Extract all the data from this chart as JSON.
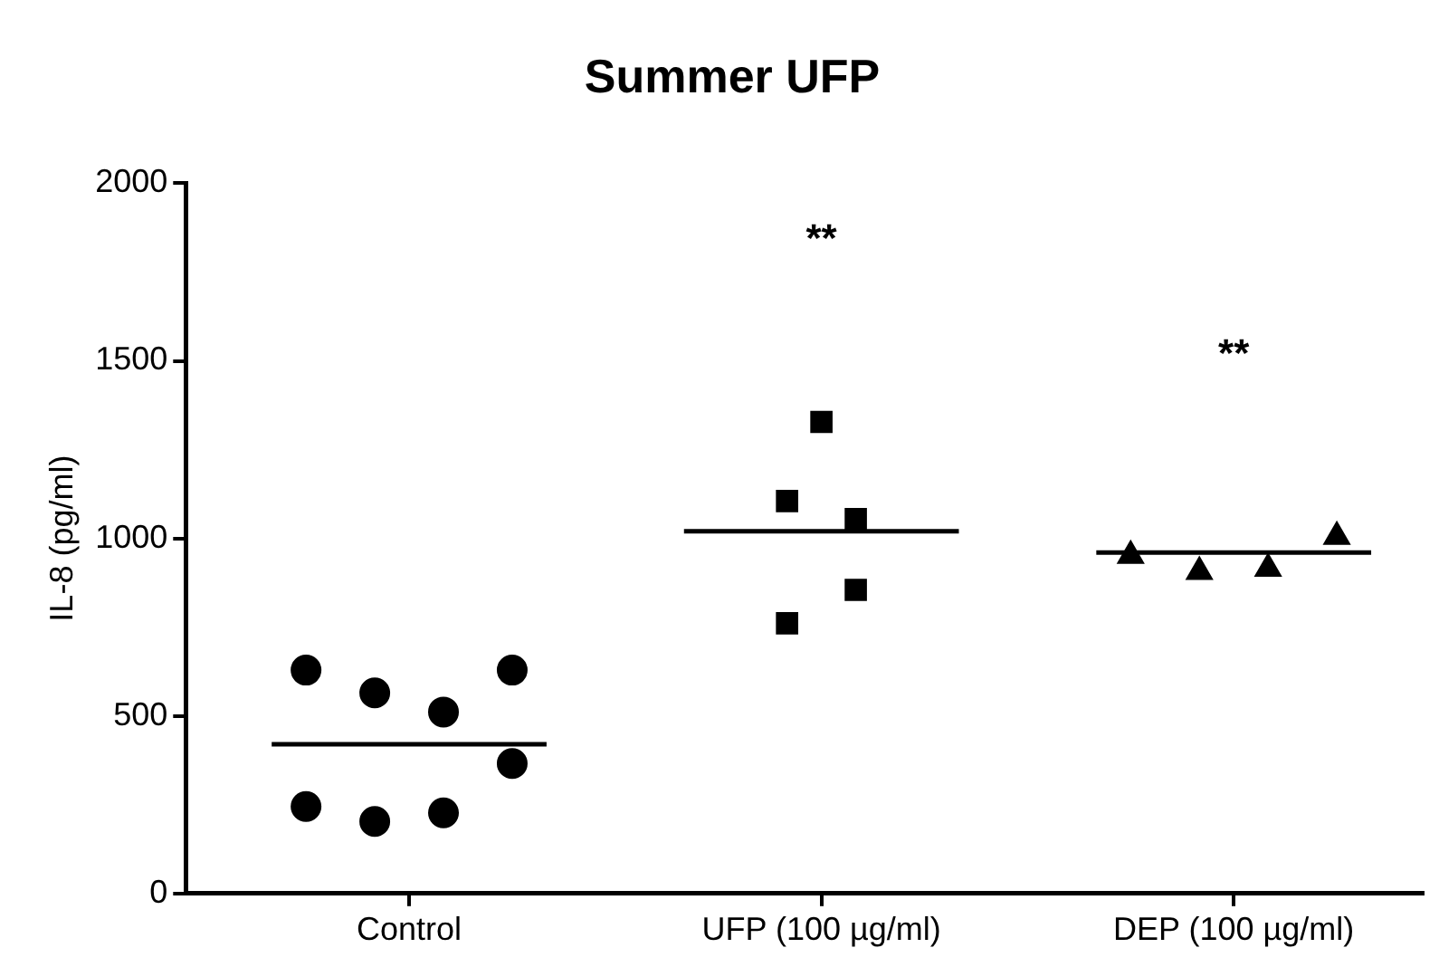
{
  "chart_data": {
    "type": "scatter",
    "title": "Summer UFP",
    "ylabel": "IL-8 (pg/ml)",
    "categories": [
      null,
      null,
      null,
      null,
      null,
      null,
      "Control",
      null,
      null,
      null,
      null,
      null,
      null,
      null,
      null,
      null,
      null,
      null,
      "UFP (100 µg/ml)",
      null,
      null,
      null,
      null,
      null,
      null,
      null,
      null,
      null,
      null,
      null,
      "DEP (100 µg/ml)",
      null,
      null,
      null,
      null,
      null
    ],
    "ylim": [
      0,
      2000
    ],
    "yticks": [
      0,
      500,
      1000,
      1500,
      2000
    ],
    "grid": false,
    "legend": false,
    "series": [
      {
        "type": "scatter",
        "marker": "circle",
        "color": "#000000",
        "values": [
          null,
          null,
          null,
          629,
          null,
          565,
          null,
          511,
          null,
          629,
          null,
          null,
          null,
          null,
          null,
          null,
          null,
          null,
          null,
          null,
          null,
          null,
          null,
          null,
          null,
          null,
          null,
          null,
          null,
          null,
          null,
          null,
          null,
          null,
          null,
          null
        ]
      },
      {
        "type": "scatter",
        "marker": "circle",
        "color": "#000000",
        "values": [
          null,
          null,
          null,
          245,
          null,
          203,
          null,
          227,
          null,
          366,
          null,
          null,
          null,
          null,
          null,
          null,
          null,
          null,
          null,
          null,
          null,
          null,
          null,
          null,
          null,
          null,
          null,
          null,
          null,
          null,
          null,
          null,
          null,
          null,
          null,
          null
        ]
      },
      {
        "type": "scatter",
        "marker": "square",
        "color": "#000000",
        "values": [
          null,
          null,
          null,
          null,
          null,
          null,
          null,
          null,
          null,
          null,
          null,
          null,
          null,
          null,
          null,
          null,
          null,
          1105,
          1328,
          1054,
          null,
          null,
          null,
          null,
          null,
          null,
          null,
          null,
          null,
          null,
          null,
          null,
          null,
          null,
          null,
          null
        ]
      },
      {
        "type": "scatter",
        "marker": "square",
        "color": "#000000",
        "values": [
          null,
          null,
          null,
          null,
          null,
          null,
          null,
          null,
          null,
          null,
          null,
          null,
          null,
          null,
          null,
          null,
          null,
          761,
          null,
          855,
          null,
          null,
          null,
          null,
          null,
          null,
          null,
          null,
          null,
          null,
          null,
          null,
          null,
          null,
          null,
          null
        ]
      },
      {
        "type": "scatter",
        "marker": "triangle",
        "color": "#000000",
        "values": [
          null,
          null,
          null,
          null,
          null,
          null,
          null,
          null,
          null,
          null,
          null,
          null,
          null,
          null,
          null,
          null,
          null,
          null,
          null,
          null,
          null,
          null,
          null,
          null,
          null,
          null,
          null,
          951,
          null,
          906,
          null,
          915,
          null,
          1005,
          null,
          null
        ]
      },
      {
        "type": "line",
        "marker": "none",
        "color": "#000000",
        "values": [
          null,
          null,
          420,
          null,
          null,
          null,
          null,
          null,
          null,
          null,
          420,
          null,
          null,
          null,
          null,
          null,
          null,
          null,
          null,
          null,
          null,
          null,
          null,
          null,
          null,
          null,
          null,
          null,
          null,
          null,
          null,
          null,
          null,
          null,
          null,
          null
        ]
      },
      {
        "type": "line",
        "marker": "none",
        "color": "#000000",
        "values": [
          null,
          null,
          null,
          null,
          null,
          null,
          null,
          null,
          null,
          null,
          null,
          null,
          null,
          null,
          1020,
          null,
          null,
          null,
          null,
          null,
          null,
          null,
          1020,
          null,
          null,
          null,
          null,
          null,
          null,
          null,
          null,
          null,
          null,
          null,
          null,
          null
        ]
      },
      {
        "type": "line",
        "marker": "none",
        "color": "#000000",
        "values": [
          null,
          null,
          null,
          null,
          null,
          null,
          null,
          null,
          null,
          null,
          null,
          null,
          null,
          null,
          null,
          null,
          null,
          null,
          null,
          null,
          null,
          null,
          null,
          null,
          null,
          null,
          960,
          null,
          null,
          null,
          null,
          null,
          null,
          null,
          960,
          null
        ]
      }
    ],
    "annotations": [
      "**",
      "**"
    ]
  }
}
